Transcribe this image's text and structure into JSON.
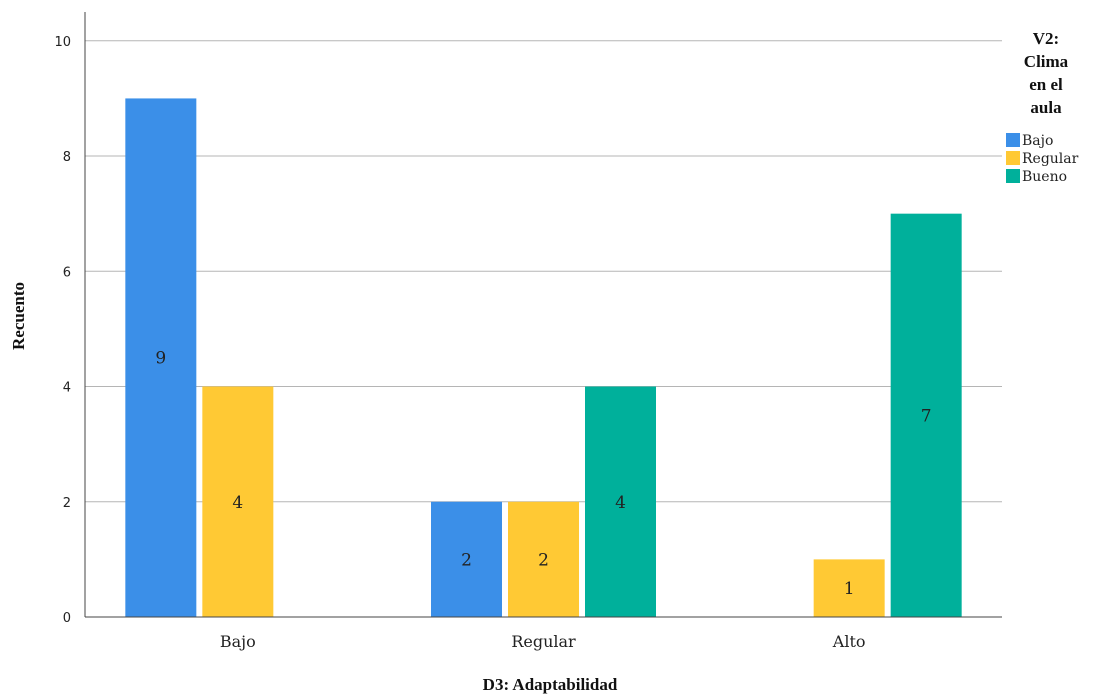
{
  "chart_data": {
    "type": "bar",
    "categories": [
      "Bajo",
      "Regular",
      "Alto"
    ],
    "series": [
      {
        "name": "Bajo",
        "color": "#3b8fe8",
        "values": [
          9,
          2,
          0
        ]
      },
      {
        "name": "Regular",
        "color": "#ffc934",
        "values": [
          4,
          2,
          1
        ]
      },
      {
        "name": "Bueno",
        "color": "#00b09b",
        "values": [
          0,
          4,
          7
        ]
      }
    ],
    "xlabel": "D3: Adaptabilidad",
    "ylabel": "Recuento",
    "ylim": [
      0,
      10.5
    ],
    "yticks": [
      0,
      2,
      4,
      6,
      8,
      10
    ],
    "grid": true,
    "legend": {
      "title_lines": [
        "V2:",
        "Clima",
        "en el",
        "aula"
      ],
      "placement": "right"
    }
  }
}
